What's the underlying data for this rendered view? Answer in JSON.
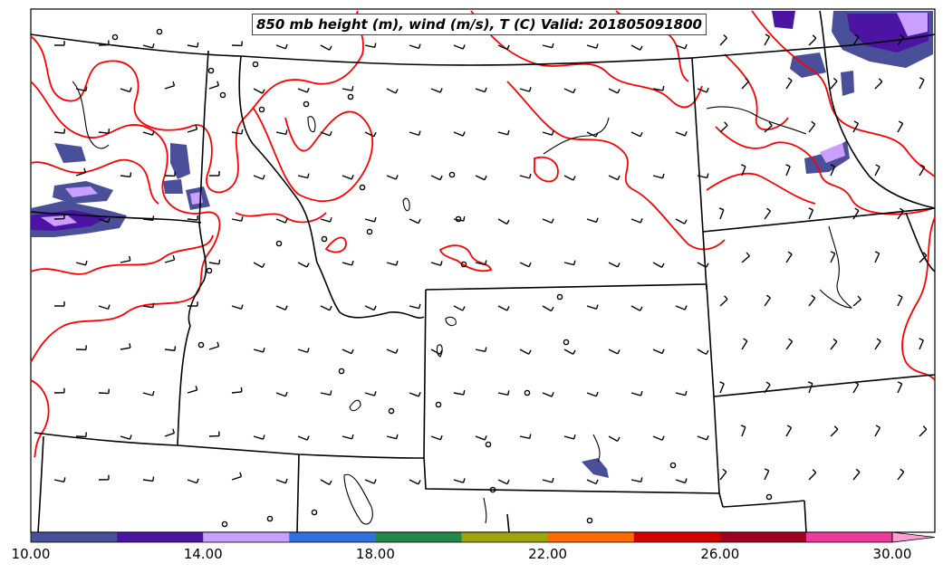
{
  "map": {
    "title": "850 mb height (m), wind (m/s), T (C) Valid: 201805091800"
  },
  "colorbar": {
    "tick_labels": [
      "10.00",
      "14.00",
      "18.00",
      "22.00",
      "26.00",
      "30.00"
    ],
    "colors": [
      "#4a4f99",
      "#4b14a2",
      "#c9a0ff",
      "#2f71e0",
      "#23894a",
      "#9ea40b",
      "#ff6b00",
      "#d40000",
      "#a0001f",
      "#f0399f",
      "#ff9ed2"
    ]
  },
  "styles": {
    "temperature_contour_color": "#ff0000",
    "boundary_color": "#000000",
    "shading_dark": "#4a4f99",
    "shading_purple": "#4b14a2",
    "shading_light": "#c9a0ff"
  }
}
